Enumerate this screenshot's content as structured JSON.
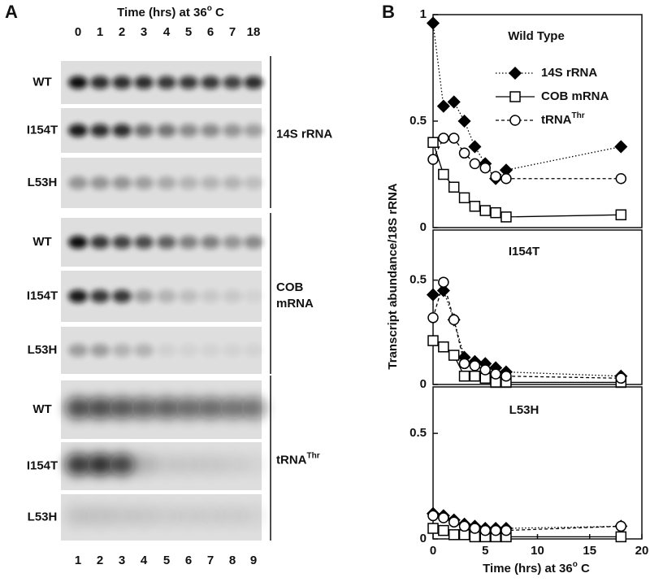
{
  "panel_a": {
    "label": "A",
    "header": {
      "text": "Time (hrs) at 36",
      "sup": "o",
      "tail": " C"
    },
    "lane_times": [
      "0",
      "1",
      "2",
      "3",
      "4",
      "5",
      "6",
      "7",
      "18"
    ],
    "lane_numbers": [
      "1",
      "2",
      "3",
      "4",
      "5",
      "6",
      "7",
      "8",
      "9"
    ],
    "groups": [
      {
        "label_lines": [
          "14S rRNA"
        ],
        "rows": [
          "WT",
          "I154T",
          "L53H"
        ]
      },
      {
        "label_lines": [
          "COB",
          "mRNA"
        ],
        "rows": [
          "WT",
          "I154T",
          "L53H"
        ]
      },
      {
        "label_lines": [
          "tRNA"
        ],
        "label_sup": "Thr",
        "rows": [
          "WT",
          "I154T",
          "L53H"
        ]
      }
    ]
  },
  "panel_b": {
    "label": "B",
    "y_label": "Transcript abundance/18S rRNA",
    "x_label": {
      "text": "Time (hrs) at 36",
      "sup": "o",
      "tail": " C"
    }
  },
  "chart_data": [
    {
      "type": "line",
      "title": "Wild Type",
      "x": [
        0,
        1,
        2,
        3,
        4,
        5,
        6,
        7,
        18
      ],
      "ylim": [
        0,
        1
      ],
      "yticks": [
        0,
        0.5,
        1
      ],
      "xlim": [
        0,
        20
      ],
      "legend": "upper right",
      "series": [
        {
          "name": "14S rRNA",
          "color": "#000000",
          "marker": "diamond",
          "filled": true,
          "dash": "dotted",
          "values": [
            0.96,
            0.57,
            0.59,
            0.5,
            0.38,
            0.3,
            0.23,
            0.27,
            0.38
          ]
        },
        {
          "name": "COB mRNA",
          "color": "#000000",
          "marker": "square",
          "filled": false,
          "dash": "solid",
          "values": [
            0.4,
            0.25,
            0.19,
            0.14,
            0.1,
            0.08,
            0.07,
            0.05,
            0.06
          ]
        },
        {
          "name": "tRNA",
          "name_sup": "Thr",
          "color": "#000000",
          "marker": "circle",
          "filled": false,
          "dash": "dashed",
          "values": [
            0.32,
            0.42,
            0.42,
            0.35,
            0.3,
            0.28,
            0.24,
            0.23,
            0.23
          ]
        }
      ]
    },
    {
      "type": "line",
      "title": "I154T",
      "x": [
        0,
        1,
        2,
        3,
        4,
        5,
        6,
        7,
        18
      ],
      "ylim": [
        0,
        0.74
      ],
      "yticks": [
        0,
        0.5
      ],
      "xlim": [
        0,
        20
      ],
      "series": [
        {
          "color": "#000000",
          "marker": "diamond",
          "filled": true,
          "dash": "dotted",
          "values": [
            0.43,
            0.45,
            0.31,
            0.13,
            0.11,
            0.1,
            0.08,
            0.06,
            0.04
          ]
        },
        {
          "color": "#000000",
          "marker": "square",
          "filled": false,
          "dash": "solid",
          "values": [
            0.21,
            0.18,
            0.14,
            0.04,
            0.04,
            0.03,
            0.01,
            0.01,
            0.01
          ]
        },
        {
          "color": "#000000",
          "marker": "circle",
          "filled": false,
          "dash": "dashed",
          "values": [
            0.32,
            0.49,
            0.31,
            0.1,
            0.09,
            0.07,
            0.05,
            0.04,
            0.03
          ]
        }
      ]
    },
    {
      "type": "line",
      "title": "L53H",
      "x": [
        0,
        1,
        2,
        3,
        4,
        5,
        6,
        7,
        18
      ],
      "ylim": [
        0,
        0.72
      ],
      "yticks": [
        0,
        0.5
      ],
      "xlim": [
        0,
        20
      ],
      "xticks": [
        0,
        5,
        10,
        15,
        20
      ],
      "series": [
        {
          "color": "#000000",
          "marker": "diamond",
          "filled": true,
          "dash": "dotted",
          "values": [
            0.12,
            0.11,
            0.09,
            0.07,
            0.06,
            0.05,
            0.05,
            0.05,
            0.06
          ]
        },
        {
          "color": "#000000",
          "marker": "square",
          "filled": false,
          "dash": "solid",
          "values": [
            0.05,
            0.04,
            0.02,
            0.02,
            0.01,
            0.01,
            0.01,
            0.01,
            0.01
          ]
        },
        {
          "color": "#000000",
          "marker": "circle",
          "filled": false,
          "dash": "dashed",
          "values": [
            0.11,
            0.1,
            0.08,
            0.06,
            0.05,
            0.04,
            0.04,
            0.04,
            0.06
          ]
        }
      ]
    }
  ]
}
